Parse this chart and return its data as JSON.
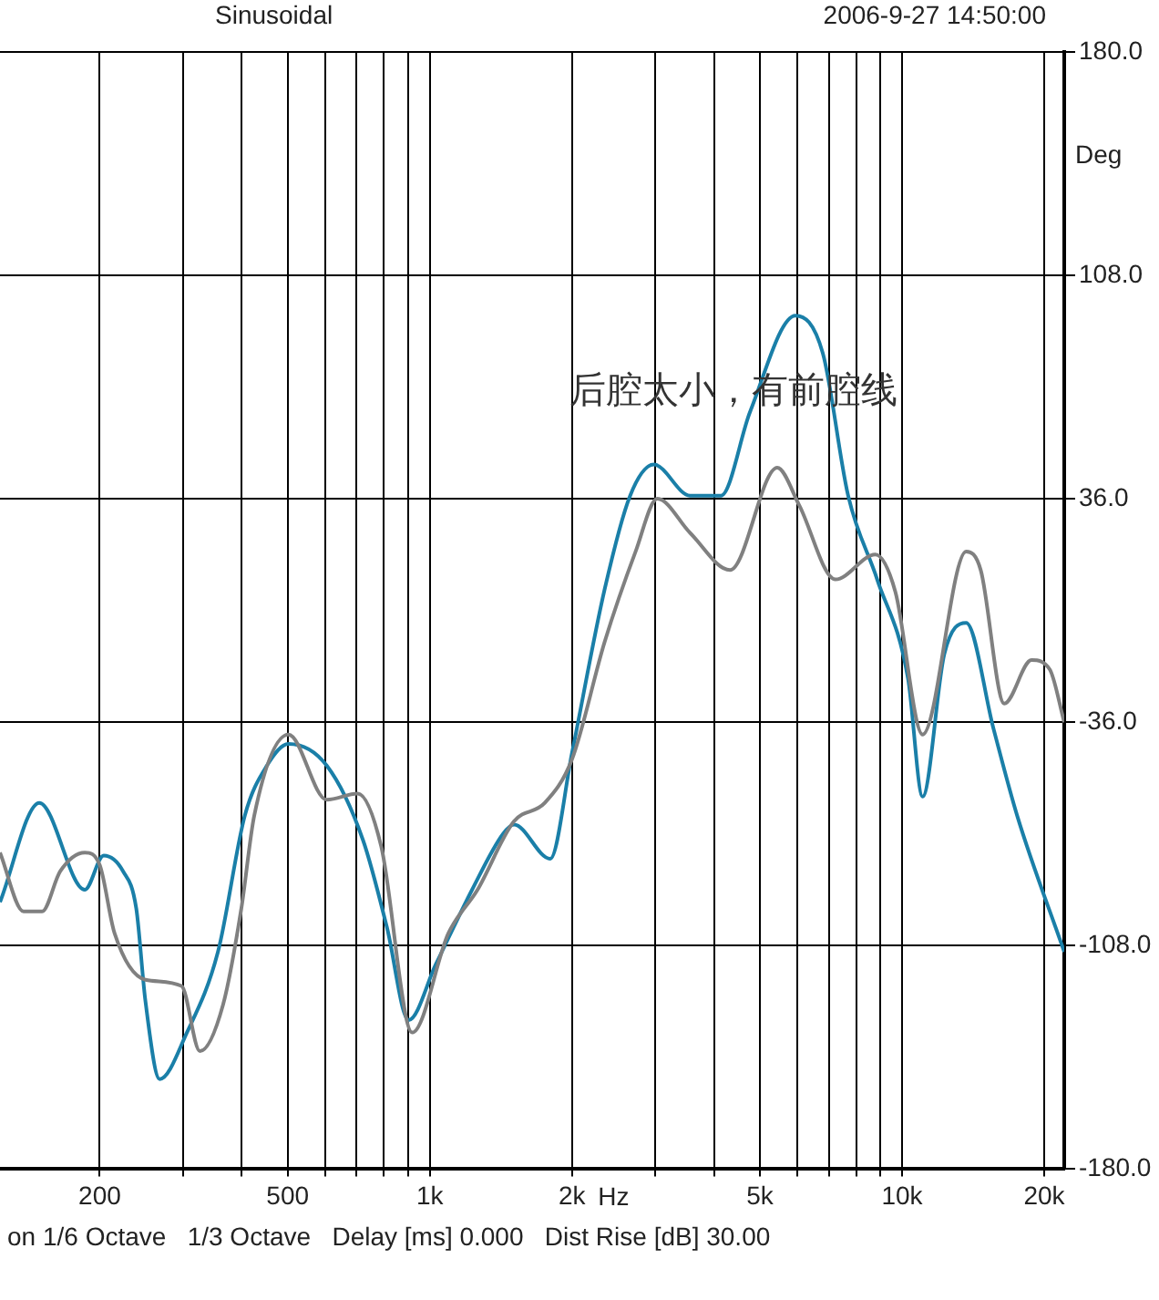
{
  "chart_data": {
    "type": "line",
    "xlabel": "Hz",
    "ylabel": "Deg",
    "annotations": [
      "Sinusoidal",
      "2006-9-27 14:50:00",
      "后腔太小，有前腔线",
      "on 1/6 Octave   1/3 Octave   Delay [ms] 0.000   Dist Rise [dB] 30.00"
    ],
    "log": "x",
    "grid": true,
    "legend": false,
    "marker": "none",
    "line_style": "solid",
    "xlim": [
      123,
      22050
    ],
    "xticks": [
      {
        "value": 200,
        "label": "200"
      },
      {
        "value": 300,
        "label": null
      },
      {
        "value": 400,
        "label": null
      },
      {
        "value": 500,
        "label": "500"
      },
      {
        "value": 600,
        "label": null
      },
      {
        "value": 700,
        "label": null
      },
      {
        "value": 800,
        "label": null
      },
      {
        "value": 900,
        "label": null
      },
      {
        "value": 1000,
        "label": "1k"
      },
      {
        "value": 2000,
        "label": "2k"
      },
      {
        "value": 3000,
        "label": null
      },
      {
        "value": 4000,
        "label": null
      },
      {
        "value": 5000,
        "label": "5k"
      },
      {
        "value": 6000,
        "label": null
      },
      {
        "value": 7000,
        "label": null
      },
      {
        "value": 8000,
        "label": null
      },
      {
        "value": 9000,
        "label": null
      },
      {
        "value": 10000,
        "label": "10k"
      },
      {
        "value": 20000,
        "label": "20k"
      }
    ],
    "ylim": [
      -180,
      180
    ],
    "yticks": [
      {
        "value": -180,
        "label": "-180.0"
      },
      {
        "value": -108,
        "label": "-108.0"
      },
      {
        "value": -36,
        "label": "-36.0"
      },
      {
        "value": 36,
        "label": "36.0"
      },
      {
        "value": 108,
        "label": "108.0"
      },
      {
        "value": 180,
        "label": "180.0"
      }
    ],
    "series": [
      {
        "color": "#808080",
        "x": [
          123,
          138,
          151,
          165,
          186,
          200,
          215,
          250,
          298,
          326,
          365,
          399,
          425,
          502,
          605,
          704,
          789,
          918,
          1095,
          1262,
          1507,
          1752,
          2000,
          2347,
          2728,
          3033,
          3557,
          4323,
          5442,
          6052,
          7224,
          8779,
          9679,
          11054,
          13670,
          14675,
          16461,
          18803,
          20543,
          22050
        ],
        "values": [
          -78,
          -97,
          -97,
          -84,
          -78,
          -82,
          -104,
          -119,
          -121,
          -142,
          -127,
          -96,
          -66,
          -40,
          -61,
          -59,
          -76,
          -136,
          -104,
          -90,
          -68,
          -62,
          -48,
          -10,
          19,
          36,
          25,
          13,
          46,
          34,
          10,
          18,
          6,
          -40,
          19,
          13,
          -30,
          -16,
          -19,
          -36
        ]
      },
      {
        "color": "#1a7fa8",
        "x": [
          123,
          149,
          186,
          204,
          224,
          239,
          250,
          268,
          306,
          356,
          406,
          452,
          502,
          605,
          722,
          811,
          902,
          1030,
          1229,
          1429,
          1507,
          1799,
          2000,
          2347,
          2656,
          2981,
          3557,
          4135,
          4766,
          5946,
          6791,
          7688,
          8857,
          10297,
          11054,
          12290,
          13670,
          15612,
          17519,
          22050
        ],
        "values": [
          -94,
          -62,
          -90,
          -79,
          -84,
          -96,
          -126,
          -151,
          -136,
          -110,
          -66,
          -50,
          -43,
          -50,
          -74,
          -102,
          -132,
          -114,
          -90,
          -72,
          -69,
          -80,
          -46,
          7,
          37,
          47,
          37,
          37,
          64,
          95,
          83,
          37,
          10,
          -22,
          -60,
          -14,
          -4,
          -38,
          -66,
          -110
        ]
      }
    ]
  }
}
